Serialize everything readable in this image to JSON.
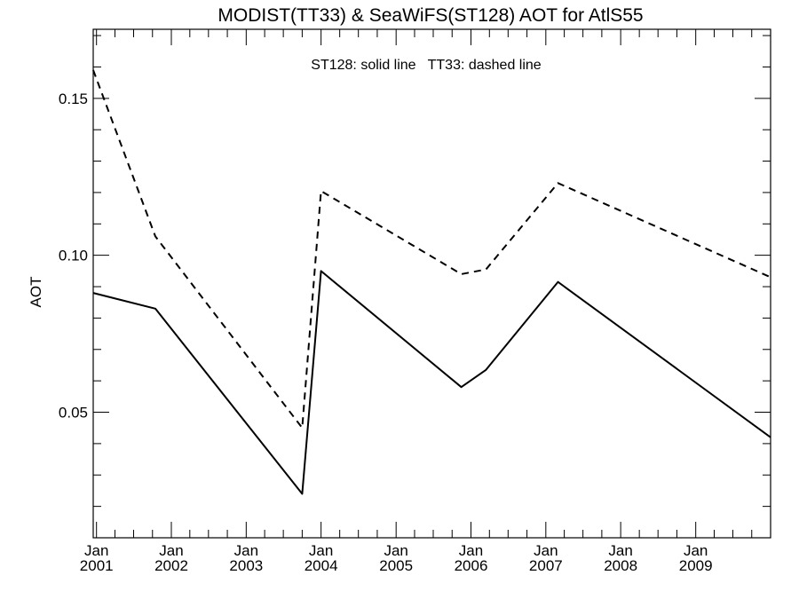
{
  "chart_data": {
    "type": "line",
    "title": "MODIST(TT33) & SeaWiFS(ST128)  AOT for AtlS55",
    "ylabel": "AOT",
    "annotation": "ST128: solid line   TT33: dashed line",
    "xlim": [
      "2000-12-16",
      "2010-01-01"
    ],
    "ylim": [
      0.01,
      0.172
    ],
    "x_ticks": [
      {
        "date": "2001-01-01",
        "label": [
          "Jan",
          "2001"
        ]
      },
      {
        "date": "2002-01-01",
        "label": [
          "Jan",
          "2002"
        ]
      },
      {
        "date": "2003-01-01",
        "label": [
          "Jan",
          "2003"
        ]
      },
      {
        "date": "2004-01-01",
        "label": [
          "Jan",
          "2004"
        ]
      },
      {
        "date": "2005-01-01",
        "label": [
          "Jan",
          "2005"
        ]
      },
      {
        "date": "2006-01-01",
        "label": [
          "Jan",
          "2006"
        ]
      },
      {
        "date": "2007-01-01",
        "label": [
          "Jan",
          "2007"
        ]
      },
      {
        "date": "2008-01-01",
        "label": [
          "Jan",
          "2008"
        ]
      },
      {
        "date": "2009-01-01",
        "label": [
          "Jan",
          "2009"
        ]
      }
    ],
    "y_ticks": [
      {
        "value": 0.05,
        "label": "0.05"
      },
      {
        "value": 0.1,
        "label": "0.10"
      },
      {
        "value": 0.15,
        "label": "0.15"
      }
    ],
    "series": [
      {
        "name": "ST128",
        "style": "solid",
        "color": "#000000",
        "points": [
          {
            "x": "2000-12-16",
            "y": 0.088
          },
          {
            "x": "2001-10-15",
            "y": 0.083
          },
          {
            "x": "2003-10-01",
            "y": 0.024
          },
          {
            "x": "2004-01-01",
            "y": 0.095
          },
          {
            "x": "2005-11-15",
            "y": 0.058
          },
          {
            "x": "2006-03-15",
            "y": 0.0635
          },
          {
            "x": "2007-03-01",
            "y": 0.0915
          },
          {
            "x": "2010-01-01",
            "y": 0.042
          }
        ]
      },
      {
        "name": "TT33",
        "style": "dashed",
        "color": "#000000",
        "points": [
          {
            "x": "2000-12-16",
            "y": 0.159
          },
          {
            "x": "2001-10-15",
            "y": 0.106
          },
          {
            "x": "2003-10-01",
            "y": 0.045
          },
          {
            "x": "2004-01-01",
            "y": 0.1205
          },
          {
            "x": "2005-11-15",
            "y": 0.094
          },
          {
            "x": "2006-03-15",
            "y": 0.0955
          },
          {
            "x": "2007-03-01",
            "y": 0.123
          },
          {
            "x": "2010-01-01",
            "y": 0.093
          }
        ]
      }
    ],
    "grid": false
  }
}
